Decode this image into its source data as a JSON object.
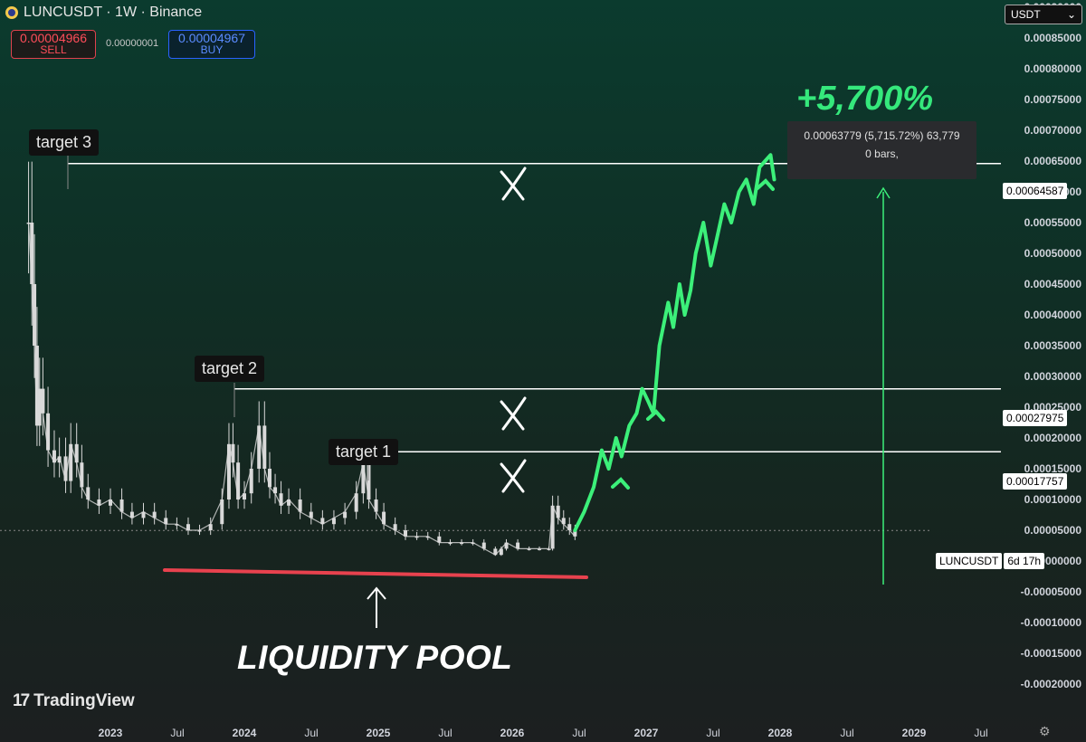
{
  "header": {
    "symbol_title": "LUNCUSDT · 1W · Binance",
    "sell_price": "0.00004966",
    "sell_label": "SELL",
    "spread": "0.00000001",
    "buy_price": "0.00004967",
    "buy_label": "BUY",
    "currency": "USDT"
  },
  "annotations": {
    "target1": "target 1",
    "target2": "target 2",
    "target3": "target 3",
    "percent_gain": "+5,700%",
    "tooltip_line1": "0.00063779 (5,715.72%) 63,779",
    "tooltip_line2": "0 bars,",
    "liquidity_pool": "LIQUIDITY POOL",
    "current_symbol": "LUNCUSDT",
    "countdown": "6d 17h",
    "brand": "TradingView"
  },
  "colors": {
    "candle": "#d9d9d9",
    "projection": "#3cf07a",
    "support": "#e8424e",
    "level_line": "#ffffff"
  },
  "chart_data": {
    "type": "line",
    "title": "LUNCUSDT · 1W · Binance",
    "ylim": [
      -0.0002,
      0.00091
    ],
    "x_tick_labels": [
      "2023",
      "Jul",
      "2024",
      "Jul",
      "2025",
      "Jul",
      "2026",
      "Jul",
      "2027",
      "Jul",
      "2028",
      "Jul",
      "2029",
      "Jul"
    ],
    "y_tick_labels": [
      "0.00090000",
      "0.00085000",
      "0.00080000",
      "0.00075000",
      "0.00070000",
      "0.00065000",
      "0.00060000",
      "0.00055000",
      "0.00050000",
      "0.00045000",
      "0.00040000",
      "0.00035000",
      "0.00030000",
      "0.00025000",
      "0.00020000",
      "0.00015000",
      "0.00010000",
      "0.00005000",
      "0.00000000",
      "-0.00005000",
      "-0.00010000",
      "-0.00015000",
      "-0.00020000"
    ],
    "levels": [
      {
        "name": "target 3",
        "value": 0.00064587,
        "label": "0.00064587"
      },
      {
        "name": "target 2",
        "value": 0.00027975,
        "label": "0.00027975"
      },
      {
        "name": "target 1",
        "value": 0.00017757,
        "label": "0.00017757"
      }
    ],
    "series": [
      {
        "name": "LUNCUSDT",
        "x": [
          "2022-05-23",
          "2022-06-01",
          "2022-06-08",
          "2022-06-15",
          "2022-06-22",
          "2022-07-01",
          "2022-07-15",
          "2022-08-01",
          "2022-08-15",
          "2022-09-01",
          "2022-09-15",
          "2022-10-01",
          "2022-10-15",
          "2022-11-01",
          "2022-12-01",
          "2023-01-01",
          "2023-02-01",
          "2023-03-01",
          "2023-04-01",
          "2023-05-01",
          "2023-06-01",
          "2023-07-01",
          "2023-08-01",
          "2023-09-01",
          "2023-10-01",
          "2023-11-01",
          "2023-11-20",
          "2023-12-01",
          "2023-12-15",
          "2024-01-01",
          "2024-01-20",
          "2024-02-10",
          "2024-02-25",
          "2024-03-10",
          "2024-03-25",
          "2024-04-10",
          "2024-05-01",
          "2024-06-01",
          "2024-07-01",
          "2024-08-01",
          "2024-09-01",
          "2024-10-01",
          "2024-11-01",
          "2024-11-20",
          "2024-12-05",
          "2024-12-25",
          "2025-01-15",
          "2025-02-15",
          "2025-03-15",
          "2025-04-15",
          "2025-05-15",
          "2025-06-15",
          "2025-07-15",
          "2025-08-15",
          "2025-09-15",
          "2025-10-15",
          "2025-11-15",
          "2025-12-01",
          "2025-12-15",
          "2026-01-15",
          "2026-02-15",
          "2026-03-15",
          "2026-04-10",
          "2026-04-20",
          "2026-05-05",
          "2026-05-20",
          "2026-06-05",
          "2026-06-20"
        ],
        "values": [
          0.00055,
          0.00045,
          0.00035,
          0.00022,
          0.00028,
          0.00024,
          0.00018,
          0.00016,
          0.00017,
          0.00013,
          0.00019,
          0.00016,
          0.00012,
          0.0001,
          9e-05,
          0.0001,
          8e-05,
          7e-05,
          8e-05,
          7e-05,
          6e-05,
          6e-05,
          5e-05,
          5e-05,
          6e-05,
          0.0001,
          0.00019,
          0.00016,
          0.0001,
          0.00011,
          0.00015,
          0.00022,
          0.00015,
          0.00012,
          0.00011,
          9e-05,
          0.0001,
          8e-05,
          7e-05,
          6e-05,
          7e-05,
          8e-05,
          0.00011,
          0.00016,
          0.0001,
          8e-05,
          6e-05,
          5e-05,
          4e-05,
          4e-05,
          4e-05,
          3e-05,
          3e-05,
          3e-05,
          3e-05,
          2e-05,
          1e-05,
          2e-05,
          3e-05,
          2e-05,
          2e-05,
          2e-05,
          2e-05,
          9e-05,
          7e-05,
          6e-05,
          5e-05,
          4e-05
        ]
      },
      {
        "name": "projection",
        "x": [
          "2026-06-20",
          "2026-07-15",
          "2026-08-10",
          "2026-09-01",
          "2026-09-20",
          "2026-10-10",
          "2026-10-25",
          "2026-11-15",
          "2026-12-05",
          "2026-12-20",
          "2027-01-05",
          "2027-01-20",
          "2027-02-05",
          "2027-03-01",
          "2027-03-15",
          "2027-04-01",
          "2027-04-15",
          "2027-05-01",
          "2027-05-15",
          "2027-06-05",
          "2027-06-25",
          "2027-07-10",
          "2027-08-01",
          "2027-08-20",
          "2027-09-10",
          "2027-09-30",
          "2027-10-20",
          "2027-11-05",
          "2027-11-20",
          "2027-12-05",
          "2027-12-15"
        ],
        "values": [
          5e-05,
          8e-05,
          0.00012,
          0.00018,
          0.00015,
          0.0002,
          0.00017,
          0.00022,
          0.00024,
          0.00028,
          0.00026,
          0.00024,
          0.00035,
          0.00042,
          0.00038,
          0.00045,
          0.0004,
          0.00044,
          0.0005,
          0.00055,
          0.00048,
          0.00052,
          0.00058,
          0.00055,
          0.0006,
          0.00062,
          0.00058,
          0.00064,
          0.00065,
          0.00066,
          0.00062
        ]
      }
    ]
  }
}
